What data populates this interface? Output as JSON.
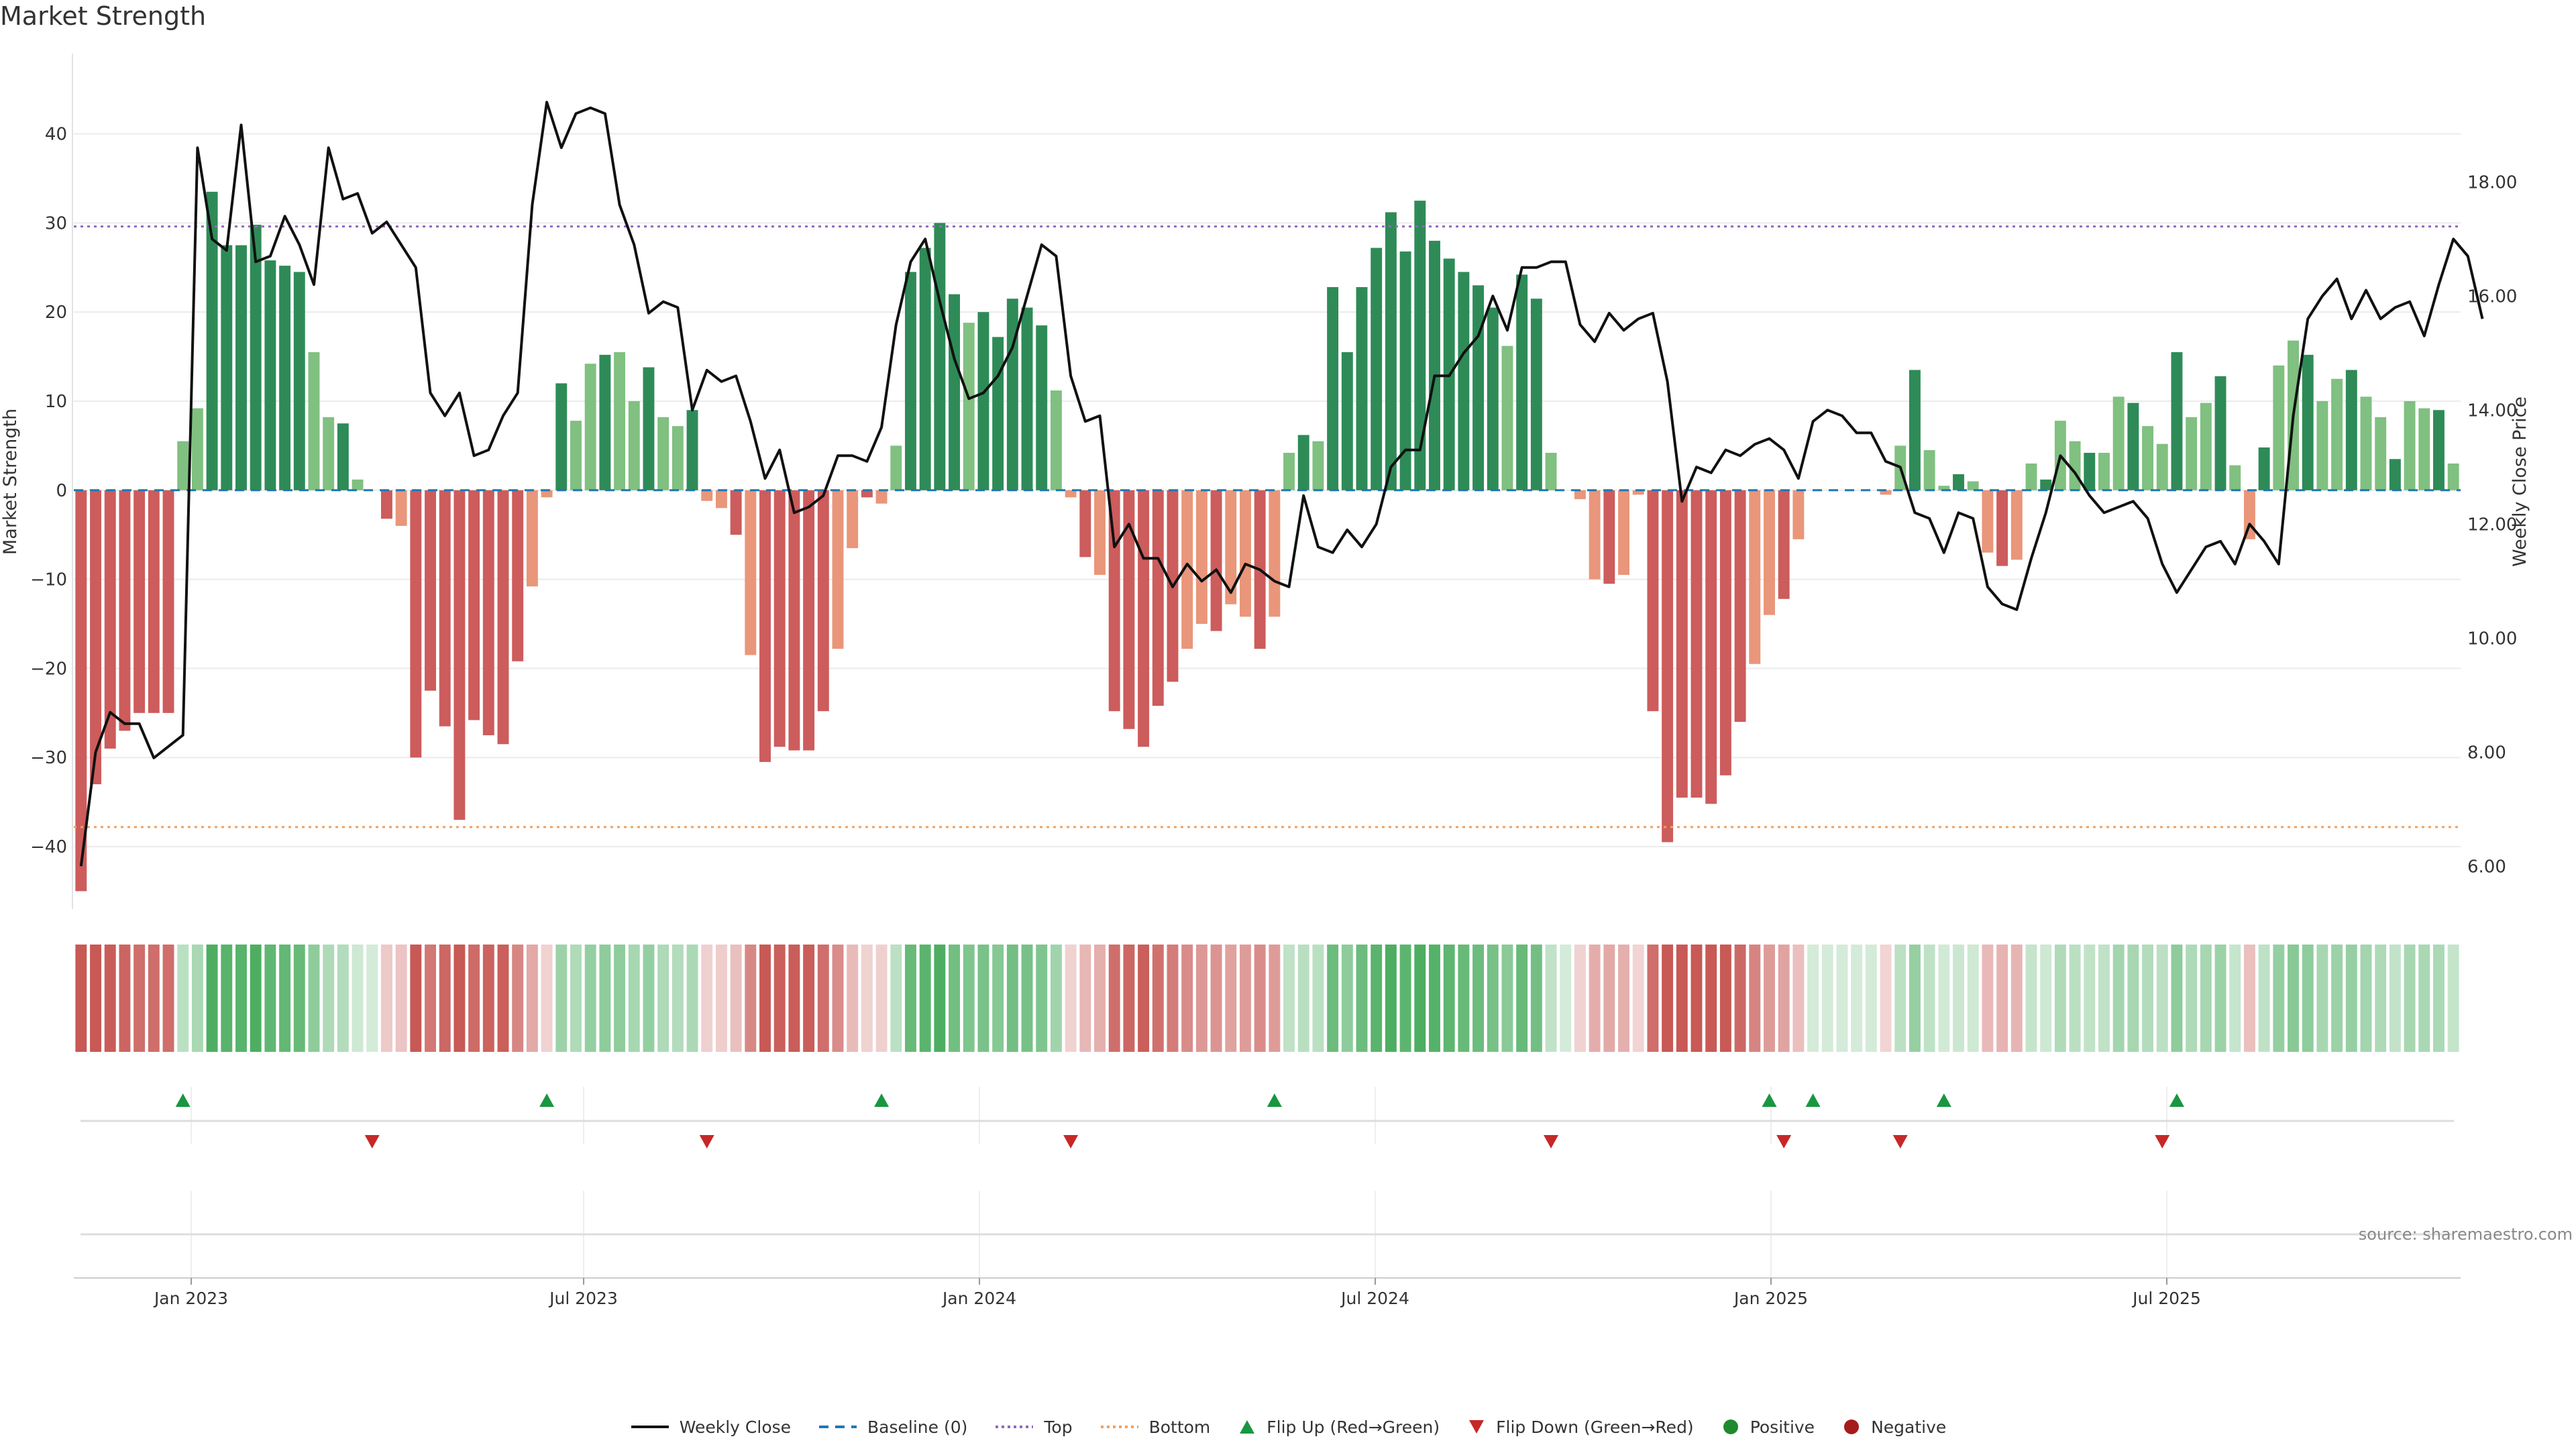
{
  "chart_data": {
    "type": "bar",
    "title": "Market Strength",
    "ylabel": "Market Strength",
    "y2label": "Weekly Close Price",
    "ylim": [
      -47,
      49
    ],
    "y2lim": [
      5.25,
      20.25
    ],
    "yticks": [
      40,
      30,
      20,
      10,
      0,
      -10,
      -20,
      -30,
      -40
    ],
    "y2ticks": [
      "18.00",
      "16.00",
      "14.00",
      "12.00",
      "10.00",
      "8.00",
      "6.00"
    ],
    "xticks": [
      "Jan 2023",
      "Jul 2023",
      "Jan 2024",
      "Jul 2024",
      "Jan 2025",
      "Jul 2025"
    ],
    "top_line": 29.6,
    "bottom_line": -37.8,
    "source": "source: sharemaestro.com",
    "strength": [
      -45,
      -33,
      -29,
      -27,
      -25,
      -25,
      -25,
      5.5,
      9.2,
      33.5,
      27.5,
      27.5,
      29.8,
      25.8,
      25.2,
      24.5,
      15.5,
      8.2,
      7.5,
      1.2,
      0,
      -3.2,
      -4,
      -30,
      -22.5,
      -26.5,
      -37,
      -25.8,
      -27.5,
      -28.5,
      -19.2,
      -10.8,
      -0.8,
      12,
      7.8,
      14.2,
      15.2,
      15.5,
      10,
      13.8,
      8.2,
      7.2,
      9,
      -1.2,
      -2,
      -5,
      -18.5,
      -30.5,
      -28.8,
      -29.2,
      -29.2,
      -24.8,
      -17.8,
      -6.5,
      -0.8,
      -1.5,
      5,
      24.5,
      27.2,
      30,
      22,
      18.8,
      20,
      17.2,
      21.5,
      20.5,
      18.5,
      11.2,
      -0.8,
      -7.5,
      -9.5,
      -24.8,
      -26.8,
      -28.8,
      -24.2,
      -21.5,
      -17.8,
      -15,
      -15.8,
      -12.8,
      -14.2,
      -17.8,
      -14.2,
      4.2,
      6.2,
      5.5,
      22.8,
      15.5,
      22.8,
      27.2,
      31.2,
      26.8,
      32.5,
      28,
      26,
      24.5,
      23,
      20.5,
      16.2,
      24.2,
      21.5,
      4.2,
      0,
      -1,
      -10,
      -10.5,
      -9.5,
      -0.5,
      -24.8,
      -39.5,
      -34.5,
      -34.5,
      -35.2,
      -32,
      -26,
      -19.5,
      -14,
      -12.2,
      -5.5,
      0,
      0,
      0,
      0,
      0,
      -0.5,
      5,
      13.5,
      4.5,
      0.5,
      1.8,
      1,
      -7,
      -8.5,
      -7.8,
      3,
      1.2,
      7.8,
      5.5,
      4.2,
      4.2,
      10.5,
      9.8,
      7.2,
      5.2,
      15.5,
      8.2,
      9.8,
      12.8,
      2.8,
      -5.5,
      4.8,
      14,
      16.8,
      15.2,
      10,
      12.5,
      13.5,
      10.5,
      8.2,
      3.5,
      10,
      9.2,
      9,
      3
    ],
    "close": [
      6.0,
      8.0,
      8.7,
      8.5,
      8.5,
      7.9,
      8.1,
      8.3,
      18.6,
      17.0,
      16.8,
      19.0,
      16.6,
      16.7,
      17.4,
      16.9,
      16.2,
      18.6,
      17.7,
      17.8,
      17.1,
      17.3,
      16.9,
      16.5,
      14.3,
      13.9,
      14.3,
      13.2,
      13.3,
      13.9,
      14.3,
      17.6,
      19.4,
      18.6,
      19.2,
      19.3,
      19.2,
      17.6,
      16.9,
      15.7,
      15.9,
      15.8,
      14.0,
      14.7,
      14.5,
      14.6,
      13.8,
      12.8,
      13.3,
      12.2,
      12.3,
      12.5,
      13.2,
      13.2,
      13.1,
      13.7,
      15.5,
      16.6,
      17.0,
      15.9,
      14.9,
      14.2,
      14.3,
      14.6,
      15.1,
      16.0,
      16.9,
      16.7,
      14.6,
      13.8,
      13.9,
      11.6,
      12.0,
      11.4,
      11.4,
      10.9,
      11.3,
      11.0,
      11.2,
      10.8,
      11.3,
      11.2,
      11.0,
      10.9,
      12.5,
      11.6,
      11.5,
      11.9,
      11.6,
      12.0,
      13.0,
      13.3,
      13.3,
      14.6,
      14.6,
      15.0,
      15.3,
      16.0,
      15.4,
      16.5,
      16.5,
      16.6,
      16.6,
      15.5,
      15.2,
      15.7,
      15.4,
      15.6,
      15.7,
      14.5,
      12.4,
      13.0,
      12.9,
      13.3,
      13.2,
      13.4,
      13.5,
      13.3,
      12.8,
      13.8,
      14.0,
      13.9,
      13.6,
      13.6,
      13.1,
      13.0,
      12.2,
      12.1,
      11.5,
      12.2,
      12.1,
      10.9,
      10.6,
      10.5,
      11.4,
      12.2,
      13.2,
      12.9,
      12.5,
      12.2,
      12.3,
      12.4,
      12.1,
      11.3,
      10.8,
      11.2,
      11.6,
      11.7,
      11.3,
      12.0,
      11.7,
      11.3,
      13.9,
      15.6,
      16.0,
      16.3,
      15.6,
      16.1,
      15.6,
      15.8,
      15.9,
      15.3,
      16.2,
      17.0,
      16.7,
      15.6
    ],
    "flip_up_weeks": [
      7,
      32,
      55,
      82,
      116,
      119,
      128,
      144
    ],
    "flip_down_weeks": [
      20,
      43,
      68,
      101,
      117,
      125,
      143
    ],
    "legend": [
      {
        "label": "Weekly Close",
        "kind": "line",
        "color": "#111111"
      },
      {
        "label": "Baseline (0)",
        "kind": "dash",
        "color": "#1f77b4"
      },
      {
        "label": "Top",
        "kind": "dot",
        "color": "#9467bd"
      },
      {
        "label": "Bottom",
        "kind": "dot",
        "color": "#f0a060"
      },
      {
        "label": "Flip Up (Red→Green)",
        "kind": "triangle-up",
        "color": "#1a9641"
      },
      {
        "label": "Flip Down (Green→Red)",
        "kind": "triangle-down",
        "color": "#c62828"
      },
      {
        "label": "Positive",
        "kind": "circle",
        "color": "#1f8a2e"
      },
      {
        "label": "Negative",
        "kind": "circle",
        "color": "#a61c1c"
      }
    ],
    "colors": {
      "pos_dark": "#2e8b57",
      "pos_light": "#80c080",
      "neg_dark": "#cd5c5c",
      "neg_light": "#e9967a",
      "baseline": "#1f77b4",
      "top": "#9467bd",
      "bottom": "#f0a060",
      "close": "#111111"
    }
  }
}
